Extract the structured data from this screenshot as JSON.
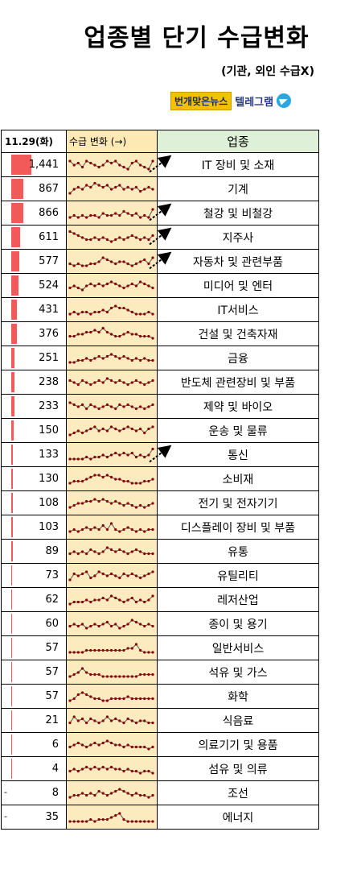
{
  "header": {
    "title": "업종별 단기 수급변화",
    "subtitle": "(기관, 외인 수급X)",
    "brand_badge": "번개맞은뉴스",
    "brand_channel": "텔레그램"
  },
  "chart_data": {
    "type": "table",
    "columns": [
      "11.29(화)",
      "수급 변화 (→)",
      "업종"
    ],
    "max_value": 1441,
    "colors": {
      "bar": "#f25a5a",
      "spark_line": "#8b0000",
      "spark_bg": "#fdebc0",
      "header_green": "#dff0d8"
    },
    "rows": [
      {
        "value": 1441,
        "value_text": "1,441",
        "sector": "IT 장비 및 소재",
        "arrow": true,
        "spark": [
          6,
          4,
          5,
          3,
          6,
          5,
          4,
          3,
          4,
          6,
          5,
          6,
          4,
          3,
          2,
          5,
          6,
          4,
          3,
          2,
          6
        ]
      },
      {
        "value": 867,
        "value_text": "867",
        "sector": "기계",
        "arrow": false,
        "spark": [
          2,
          4,
          5,
          4,
          6,
          5,
          7,
          6,
          5,
          6,
          4,
          5,
          6,
          4,
          5,
          4,
          5,
          3,
          4,
          5,
          4
        ]
      },
      {
        "value": 866,
        "value_text": "866",
        "sector": "철강 및 비철강",
        "arrow": true,
        "spark": [
          2,
          3,
          2,
          3,
          2,
          3,
          3,
          2,
          4,
          3,
          3,
          4,
          3,
          5,
          4,
          3,
          4,
          2,
          3,
          2,
          6
        ]
      },
      {
        "value": 611,
        "value_text": "611",
        "sector": "지주사",
        "arrow": true,
        "spark": [
          7,
          6,
          5,
          4,
          3,
          3,
          4,
          3,
          4,
          3,
          2,
          3,
          4,
          3,
          4,
          5,
          4,
          3,
          4,
          3,
          5
        ]
      },
      {
        "value": 577,
        "value_text": "577",
        "sector": "자동차 및 관련부품",
        "arrow": true,
        "spark": [
          3,
          2,
          3,
          2,
          2,
          3,
          3,
          4,
          6,
          5,
          4,
          3,
          4,
          4,
          3,
          2,
          3,
          4,
          5,
          3,
          6
        ]
      },
      {
        "value": 524,
        "value_text": "524",
        "sector": "미디어 및 엔터",
        "arrow": false,
        "spark": [
          3,
          4,
          3,
          2,
          4,
          5,
          4,
          5,
          4,
          5,
          6,
          5,
          4,
          3,
          4,
          5,
          4,
          6,
          5,
          4,
          3
        ]
      },
      {
        "value": 431,
        "value_text": "431",
        "sector": "IT서비스",
        "arrow": false,
        "spark": [
          2,
          3,
          2,
          3,
          3,
          2,
          3,
          3,
          4,
          3,
          5,
          6,
          5,
          5,
          4,
          3,
          2,
          2,
          2,
          3,
          2
        ]
      },
      {
        "value": 376,
        "value_text": "376",
        "sector": "건설 및 건축자재",
        "arrow": false,
        "spark": [
          3,
          3,
          4,
          4,
          5,
          5,
          6,
          5,
          7,
          5,
          4,
          3,
          3,
          4,
          5,
          4,
          4,
          3,
          3,
          3,
          2
        ]
      },
      {
        "value": 251,
        "value_text": "251",
        "sector": "금융",
        "arrow": false,
        "spark": [
          2,
          2,
          3,
          3,
          4,
          3,
          4,
          5,
          4,
          5,
          6,
          5,
          4,
          5,
          4,
          3,
          4,
          3,
          4,
          3,
          3
        ]
      },
      {
        "value": 238,
        "value_text": "238",
        "sector": "반도체 관련장비 및 부품",
        "arrow": false,
        "spark": [
          5,
          4,
          3,
          5,
          4,
          3,
          4,
          5,
          4,
          6,
          5,
          4,
          5,
          4,
          3,
          4,
          5,
          4,
          3,
          4,
          5
        ]
      },
      {
        "value": 233,
        "value_text": "233",
        "sector": "제약 및 바이오",
        "arrow": false,
        "spark": [
          6,
          5,
          4,
          5,
          3,
          5,
          4,
          3,
          4,
          5,
          4,
          3,
          5,
          4,
          5,
          4,
          3,
          4,
          3,
          4,
          5
        ]
      },
      {
        "value": 150,
        "value_text": "150",
        "sector": "운송 및 물류",
        "arrow": false,
        "spark": [
          2,
          3,
          4,
          3,
          4,
          5,
          6,
          4,
          5,
          4,
          6,
          5,
          4,
          5,
          6,
          5,
          4,
          5,
          3,
          5,
          6
        ]
      },
      {
        "value": 133,
        "value_text": "133",
        "sector": "통신",
        "arrow": true,
        "spark": [
          2,
          2,
          2,
          2,
          3,
          2,
          3,
          3,
          4,
          3,
          4,
          5,
          4,
          5,
          4,
          5,
          3,
          4,
          3,
          4,
          7
        ]
      },
      {
        "value": 130,
        "value_text": "130",
        "sector": "소비재",
        "arrow": false,
        "spark": [
          2,
          3,
          3,
          3,
          4,
          5,
          6,
          6,
          5,
          6,
          5,
          4,
          4,
          3,
          3,
          2,
          2,
          2,
          3,
          3,
          4
        ]
      },
      {
        "value": 108,
        "value_text": "108",
        "sector": "전기 및 전자기기",
        "arrow": false,
        "spark": [
          2,
          3,
          4,
          4,
          5,
          5,
          6,
          5,
          6,
          5,
          4,
          5,
          4,
          3,
          4,
          3,
          2,
          3,
          2,
          3,
          4
        ]
      },
      {
        "value": 103,
        "value_text": "103",
        "sector": "디스플레이 장비 및 부품",
        "arrow": false,
        "spark": [
          2,
          3,
          2,
          3,
          4,
          3,
          4,
          3,
          5,
          3,
          6,
          3,
          2,
          3,
          4,
          3,
          2,
          3,
          2,
          3,
          3
        ]
      },
      {
        "value": 89,
        "value_text": "89",
        "sector": "유통",
        "arrow": false,
        "spark": [
          3,
          4,
          3,
          4,
          3,
          5,
          4,
          3,
          4,
          6,
          5,
          4,
          5,
          4,
          3,
          4,
          5,
          4,
          3,
          3,
          3
        ]
      },
      {
        "value": 73,
        "value_text": "73",
        "sector": "유틸리티",
        "arrow": false,
        "spark": [
          2,
          5,
          4,
          5,
          6,
          3,
          4,
          6,
          5,
          4,
          5,
          4,
          3,
          5,
          4,
          5,
          4,
          3,
          4,
          5,
          6
        ]
      },
      {
        "value": 62,
        "value_text": "62",
        "sector": "레저산업",
        "arrow": false,
        "spark": [
          2,
          3,
          3,
          3,
          4,
          3,
          4,
          4,
          5,
          4,
          6,
          5,
          4,
          3,
          4,
          5,
          3,
          4,
          3,
          4,
          6
        ]
      },
      {
        "value": 60,
        "value_text": "60",
        "sector": "종이 및 용기",
        "arrow": false,
        "spark": [
          3,
          4,
          3,
          4,
          2,
          3,
          4,
          3,
          4,
          5,
          3,
          4,
          2,
          3,
          4,
          6,
          5,
          4,
          3,
          4,
          3
        ]
      },
      {
        "value": 57,
        "value_text": "57",
        "sector": "일반서비스",
        "arrow": false,
        "spark": [
          2,
          2,
          2,
          2,
          3,
          3,
          3,
          3,
          3,
          3,
          3,
          3,
          3,
          3,
          4,
          4,
          6,
          3,
          2,
          2,
          2
        ]
      },
      {
        "value": 57,
        "value_text": "57",
        "sector": "석유 및 가스",
        "arrow": false,
        "spark": [
          2,
          3,
          4,
          6,
          4,
          3,
          3,
          3,
          2,
          2,
          2,
          2,
          2,
          2,
          2,
          2,
          2,
          3,
          3,
          3,
          3
        ]
      },
      {
        "value": 57,
        "value_text": "57",
        "sector": "화학",
        "arrow": false,
        "spark": [
          2,
          3,
          5,
          6,
          5,
          4,
          3,
          3,
          2,
          2,
          3,
          3,
          3,
          3,
          4,
          3,
          3,
          3,
          3,
          3,
          3
        ]
      },
      {
        "value": 21,
        "value_text": "21",
        "sector": "식음료",
        "arrow": false,
        "spark": [
          3,
          6,
          4,
          5,
          3,
          5,
          4,
          3,
          4,
          6,
          4,
          5,
          4,
          3,
          5,
          4,
          3,
          4,
          4,
          3,
          3
        ]
      },
      {
        "value": 6,
        "value_text": "6",
        "sector": "의료기기 및 용품",
        "arrow": false,
        "spark": [
          3,
          4,
          5,
          4,
          3,
          4,
          5,
          4,
          5,
          6,
          5,
          4,
          4,
          3,
          4,
          3,
          3,
          3,
          3,
          2,
          3
        ]
      },
      {
        "value": 4,
        "value_text": "4",
        "sector": "섬유 및 의류",
        "arrow": false,
        "spark": [
          3,
          4,
          3,
          4,
          5,
          4,
          5,
          4,
          5,
          4,
          5,
          4,
          4,
          3,
          4,
          3,
          3,
          2,
          3,
          3,
          2
        ]
      },
      {
        "value": -8,
        "value_text": "8",
        "sector": "조선",
        "arrow": false,
        "spark": [
          2,
          3,
          3,
          4,
          3,
          4,
          3,
          5,
          4,
          3,
          4,
          5,
          6,
          5,
          4,
          3,
          4,
          3,
          3,
          2,
          3
        ]
      },
      {
        "value": -35,
        "value_text": "35",
        "sector": "에너지",
        "arrow": false,
        "spark": [
          2,
          2,
          2,
          2,
          2,
          3,
          2,
          3,
          3,
          3,
          4,
          5,
          6,
          3,
          2,
          2,
          2,
          2,
          2,
          2,
          2
        ]
      }
    ]
  }
}
